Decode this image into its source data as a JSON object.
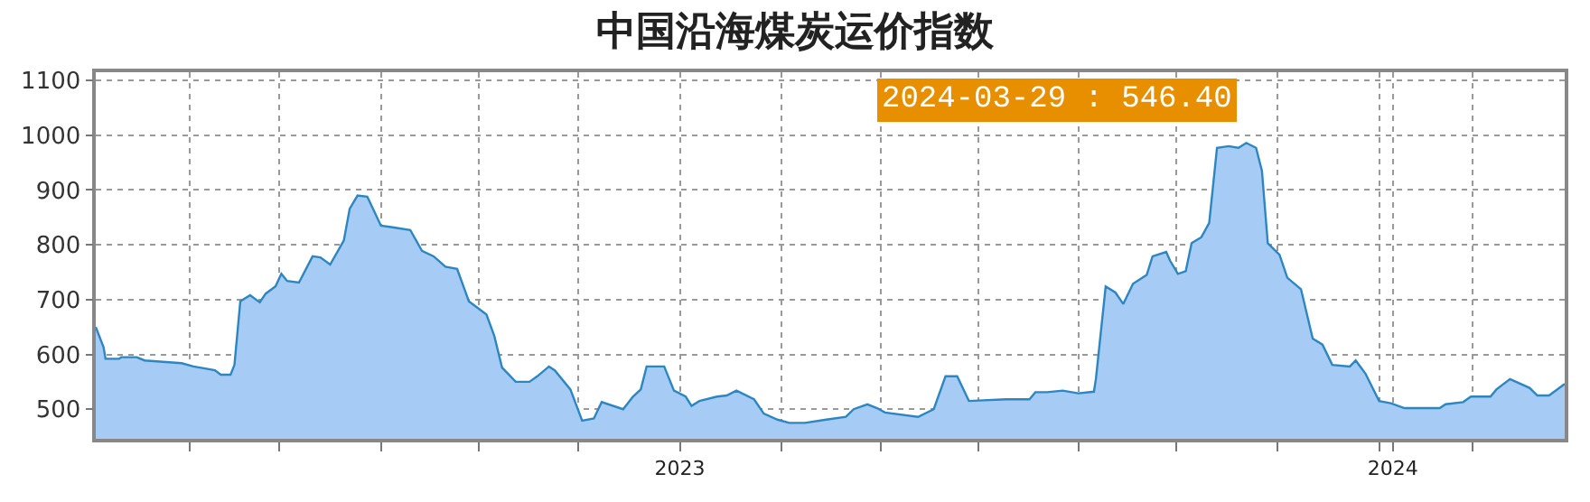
{
  "chart_data": {
    "type": "area",
    "title": "中国沿海煤炭运价指数",
    "annotations": [
      "2024-03-29 : 546.40"
    ],
    "x": [
      "2022-03-08",
      "2022-03-12",
      "2022-03-13",
      "2022-03-20",
      "2022-03-21",
      "2022-03-29",
      "2022-04-02",
      "2022-04-21",
      "2022-04-27",
      "2022-05-05",
      "2022-05-08",
      "2022-05-11",
      "2022-05-16",
      "2022-05-18",
      "2022-05-21",
      "2022-05-26",
      "2022-05-31",
      "2022-06-03",
      "2022-06-08",
      "2022-06-11",
      "2022-06-14",
      "2022-06-20",
      "2022-06-27",
      "2022-07-01",
      "2022-07-06",
      "2022-07-13",
      "2022-07-16",
      "2022-07-20",
      "2022-07-25",
      "2022-08-01",
      "2022-08-07",
      "2022-08-16",
      "2022-08-22",
      "2022-08-28",
      "2022-09-03",
      "2022-09-09",
      "2022-09-15",
      "2022-09-24",
      "2022-09-28",
      "2022-10-02",
      "2022-10-09",
      "2022-10-16",
      "2022-10-20",
      "2022-10-26",
      "2022-10-29",
      "2022-11-06",
      "2022-11-12",
      "2022-11-18",
      "2022-11-22",
      "2022-12-03",
      "2022-12-08",
      "2022-12-12",
      "2022-12-15",
      "2022-12-24",
      "2022-12-29",
      "2023-01-04",
      "2023-01-07",
      "2023-01-11",
      "2023-01-20",
      "2023-01-25",
      "2023-01-30",
      "2023-02-08",
      "2023-02-13",
      "2023-02-20",
      "2023-02-26",
      "2023-03-06",
      "2023-03-17",
      "2023-03-27",
      "2023-03-31",
      "2023-04-07",
      "2023-04-12",
      "2023-04-16",
      "2023-05-03",
      "2023-05-11",
      "2023-05-17",
      "2023-05-23",
      "2023-05-29",
      "2023-06-17",
      "2023-06-29",
      "2023-07-02",
      "2023-07-08",
      "2023-07-16",
      "2023-07-24",
      "2023-08-01",
      "2023-08-02",
      "2023-08-07",
      "2023-08-12",
      "2023-08-16",
      "2023-08-21",
      "2023-08-28",
      "2023-08-31",
      "2023-09-07",
      "2023-09-09",
      "2023-09-13",
      "2023-09-17",
      "2023-09-20",
      "2023-09-25",
      "2023-09-29",
      "2023-10-03",
      "2023-10-09",
      "2023-10-14",
      "2023-10-18",
      "2023-10-23",
      "2023-10-26",
      "2023-10-29",
      "2023-11-04",
      "2023-11-08",
      "2023-11-15",
      "2023-11-21",
      "2023-11-26",
      "2023-12-01",
      "2023-12-10",
      "2023-12-13",
      "2023-12-18",
      "2023-12-25",
      "2023-12-31",
      "2024-01-07",
      "2024-01-25",
      "2024-01-28",
      "2024-02-06",
      "2024-02-10",
      "2024-02-20",
      "2024-02-23",
      "2024-03-01",
      "2024-03-11",
      "2024-03-15",
      "2024-03-21",
      "2024-03-29"
    ],
    "series": [
      {
        "color": "#2e86c1",
        "values": [
          650,
          613,
          592,
          592,
          595,
          595,
          589,
          584,
          578,
          573,
          571,
          563,
          563,
          581,
          697,
          708,
          695,
          711,
          724,
          747,
          734,
          731,
          779,
          777,
          764,
          808,
          866,
          890,
          888,
          835,
          832,
          827,
          789,
          779,
          760,
          756,
          697,
          673,
          634,
          576,
          550,
          550,
          560,
          578,
          571,
          536,
          479,
          483,
          513,
          500,
          523,
          536,
          578,
          578,
          534,
          523,
          506,
          515,
          523,
          525,
          534,
          518,
          492,
          481,
          475,
          475,
          481,
          486,
          500,
          509,
          502,
          494,
          486,
          500,
          560,
          560,
          515,
          518,
          518,
          531,
          531,
          534,
          529,
          532,
          555,
          724,
          713,
          692,
          729,
          745,
          779,
          787,
          771,
          747,
          752,
          803,
          814,
          840,
          977,
          980,
          977,
          986,
          977,
          935,
          803,
          782,
          740,
          719,
          629,
          618,
          581,
          578,
          589,
          565,
          515,
          511,
          502,
          502,
          509,
          513,
          523,
          523,
          536,
          555,
          539,
          525,
          525,
          546
        ]
      }
    ],
    "xlim": [
      "2022-03-08",
      "2024-03-29"
    ],
    "xticks": [
      {
        "value": "2022-04-25",
        "label": null
      },
      {
        "value": "2022-06-10",
        "label": null
      },
      {
        "value": "2022-08-01",
        "label": null
      },
      {
        "value": "2022-09-20",
        "label": null
      },
      {
        "value": "2022-11-10",
        "label": null
      },
      {
        "value": "2023-01-01",
        "label": "2023"
      },
      {
        "value": "2023-02-22",
        "label": null
      },
      {
        "value": "2023-04-14",
        "label": null
      },
      {
        "value": "2023-06-03",
        "label": null
      },
      {
        "value": "2023-07-24",
        "label": null
      },
      {
        "value": "2023-09-12",
        "label": null
      },
      {
        "value": "2023-11-03",
        "label": null
      },
      {
        "value": "2023-12-25",
        "label": null
      },
      {
        "value": "2024-01-01",
        "label": "2024"
      },
      {
        "value": "2024-02-11",
        "label": null
      }
    ],
    "ylim": [
      446,
      1115
    ],
    "yticks": [
      500,
      600,
      700,
      800,
      900,
      1000,
      1100
    ],
    "grid": true,
    "marker": "none",
    "line_style": "solid"
  }
}
